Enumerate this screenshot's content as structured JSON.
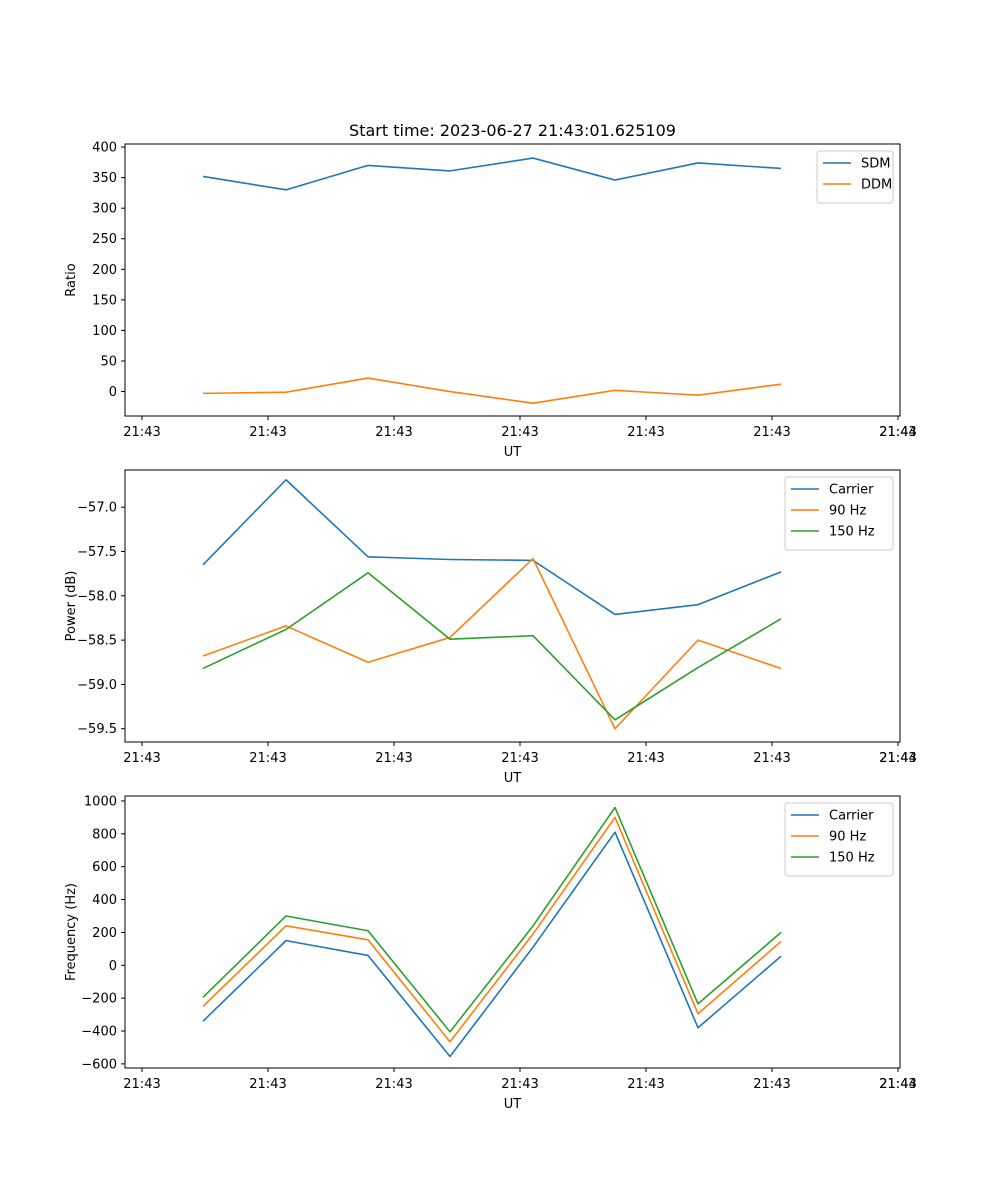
{
  "chart_data": [
    {
      "type": "line",
      "title": "Start time: 2023-06-27 21:43:01.625109",
      "xlabel": "UT",
      "ylabel": "Ratio",
      "x_tick_labels": [
        "21:43",
        "21:43",
        "21:43",
        "21:43",
        "21:43",
        "21:43",
        "21:43"
      ],
      "x_end_tick_label": "21:44",
      "ylim": [
        -40,
        405
      ],
      "yticks": [
        0,
        50,
        100,
        150,
        200,
        250,
        300,
        350,
        400
      ],
      "ytick_labels": [
        "0",
        "50",
        "100",
        "150",
        "200",
        "250",
        "300",
        "350",
        "400"
      ],
      "legend": "top-right",
      "series": [
        {
          "name": "SDM",
          "color": "#1f77b4",
          "values": [
            352,
            330,
            370,
            361,
            382,
            346,
            374,
            365
          ]
        },
        {
          "name": "DDM",
          "color": "#ff7f0e",
          "values": [
            -3,
            -1,
            22,
            0,
            -19,
            2,
            -6,
            12
          ]
        }
      ]
    },
    {
      "type": "line",
      "title": "",
      "xlabel": "UT",
      "ylabel": "Power (dB)",
      "x_tick_labels": [
        "21:43",
        "21:43",
        "21:43",
        "21:43",
        "21:43",
        "21:43",
        "21:43"
      ],
      "x_end_tick_label": "21:44",
      "ylim": [
        -59.65,
        -56.58
      ],
      "yticks": [
        -59.5,
        -59.0,
        -58.5,
        -58.0,
        -57.5,
        -57.0
      ],
      "ytick_labels": [
        "−59.5",
        "−59.0",
        "−58.5",
        "−58.0",
        "−57.5",
        "−57.0"
      ],
      "legend": "top-right",
      "series": [
        {
          "name": "Carrier",
          "color": "#1f77b4",
          "values": [
            -57.65,
            -56.69,
            -57.56,
            -57.59,
            -57.6,
            -58.21,
            -58.1,
            -57.73
          ]
        },
        {
          "name": "90 Hz",
          "color": "#ff7f0e",
          "values": [
            -58.68,
            -58.34,
            -58.75,
            -58.47,
            -57.58,
            -59.5,
            -58.5,
            -58.82
          ]
        },
        {
          "name": "150 Hz",
          "color": "#2ca02c",
          "values": [
            -58.82,
            -58.38,
            -57.74,
            -58.49,
            -58.45,
            -59.4,
            -58.81,
            -58.26
          ]
        }
      ]
    },
    {
      "type": "line",
      "title": "",
      "xlabel": "UT",
      "ylabel": "Frequency (Hz)",
      "x_tick_labels": [
        "21:43",
        "21:43",
        "21:43",
        "21:43",
        "21:43",
        "21:43",
        "21:43"
      ],
      "x_end_tick_label": "21:44",
      "ylim": [
        -625,
        1030
      ],
      "yticks": [
        -600,
        -400,
        -200,
        0,
        200,
        400,
        600,
        800,
        1000
      ],
      "ytick_labels": [
        "−600",
        "−400",
        "−200",
        "0",
        "200",
        "400",
        "600",
        "800",
        "1000"
      ],
      "legend": "top-right",
      "series": [
        {
          "name": "Carrier",
          "color": "#1f77b4",
          "values": [
            -340,
            150,
            60,
            -555,
            110,
            810,
            -380,
            55
          ]
        },
        {
          "name": "90 Hz",
          "color": "#ff7f0e",
          "values": [
            -250,
            240,
            155,
            -465,
            190,
            900,
            -295,
            145
          ]
        },
        {
          "name": "150 Hz",
          "color": "#2ca02c",
          "values": [
            -195,
            300,
            210,
            -405,
            240,
            960,
            -235,
            200
          ]
        }
      ]
    }
  ]
}
